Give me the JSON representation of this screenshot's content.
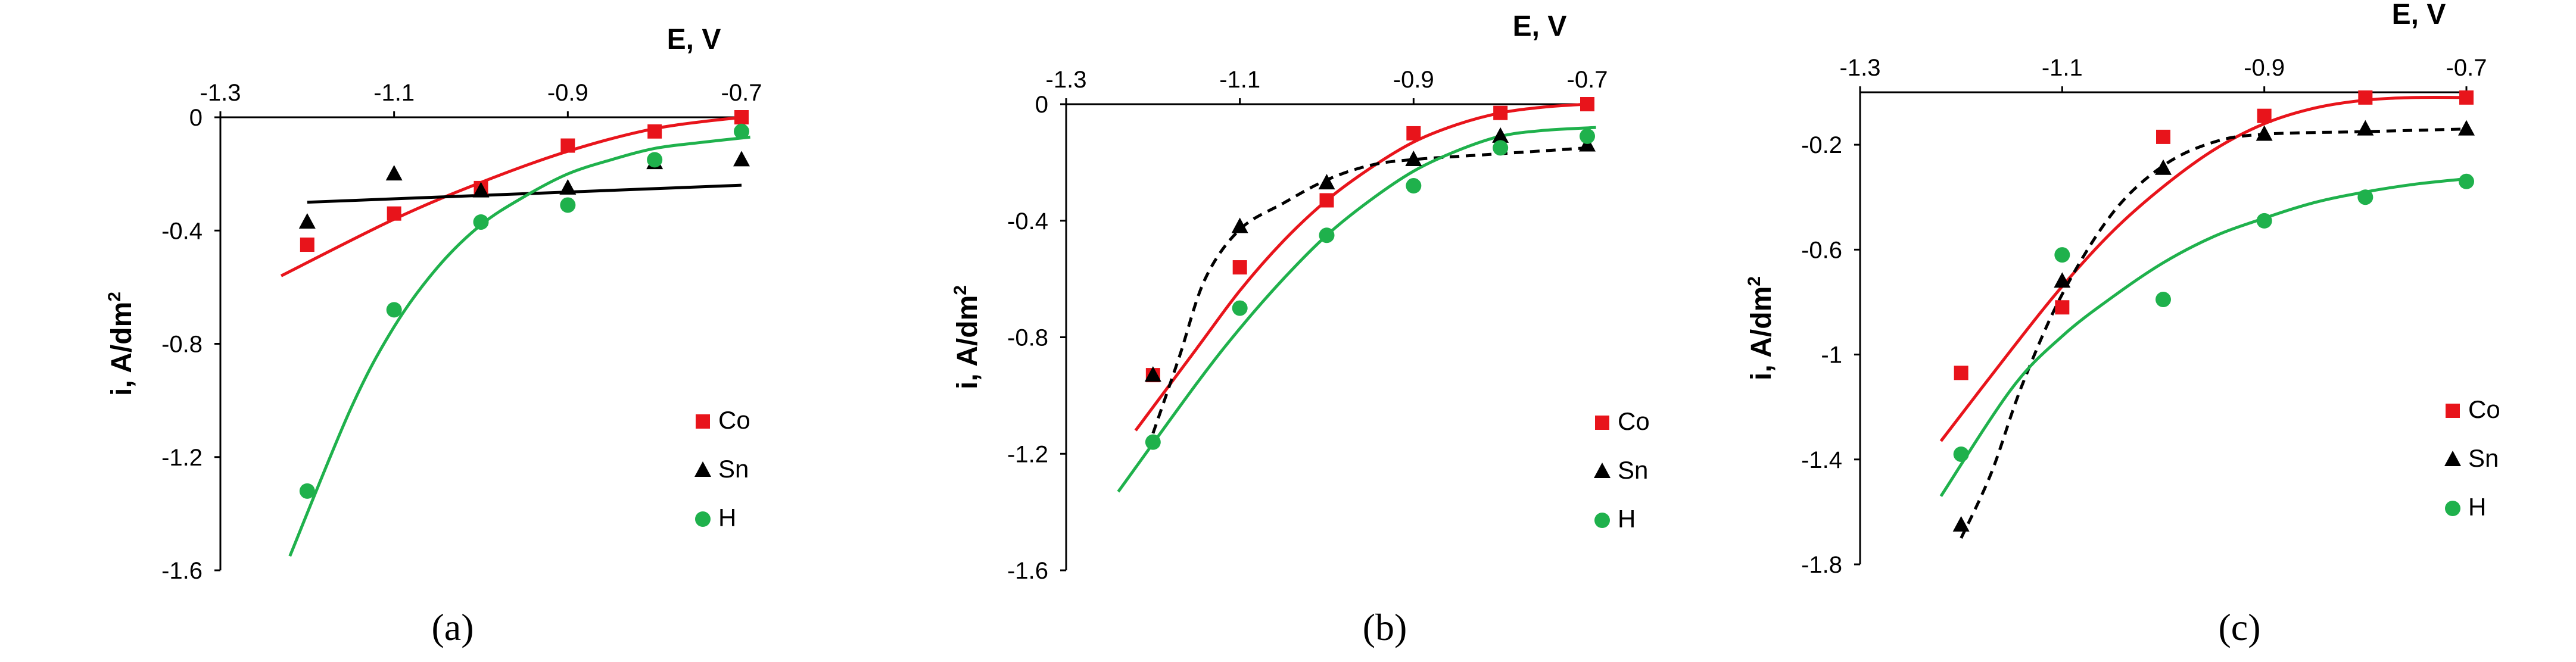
{
  "chart_data": [
    {
      "type": "scatter",
      "panel_label": "(a)",
      "xlabel": "E, V",
      "ylabel": "i, A/dm",
      "ylabel_sup": "2",
      "xlim": [
        -1.3,
        -0.7
      ],
      "ylim": [
        -1.6,
        0
      ],
      "xticks": [
        -1.3,
        -1.1,
        -0.9,
        -0.7
      ],
      "xtick_labels": [
        "-1.3",
        "-1.1",
        "-0.9",
        "-0.7"
      ],
      "yticks": [
        0,
        -0.4,
        -0.8,
        -1.2,
        -1.6
      ],
      "ytick_labels": [
        "0",
        "-0.4",
        "-0.8",
        "-1.2",
        "-1.6"
      ],
      "legend": [
        "Co",
        "Sn",
        "H"
      ],
      "series": [
        {
          "name": "Co",
          "marker": "square",
          "color": "#e8141b",
          "points": [
            [
              -1.2,
              -0.45
            ],
            [
              -1.1,
              -0.34
            ],
            [
              -1.0,
              -0.25
            ],
            [
              -0.9,
              -0.1
            ],
            [
              -0.8,
              -0.05
            ],
            [
              -0.7,
              0.0
            ]
          ],
          "trend": [
            [
              -1.23,
              -0.56
            ],
            [
              -1.1,
              -0.36
            ],
            [
              -1.0,
              -0.23
            ],
            [
              -0.9,
              -0.12
            ],
            [
              -0.8,
              -0.04
            ],
            [
              -0.7,
              0.0
            ]
          ],
          "trend_style": "solid"
        },
        {
          "name": "Sn",
          "marker": "triangle",
          "color": "#000000",
          "points": [
            [
              -1.2,
              -0.37
            ],
            [
              -1.1,
              -0.2
            ],
            [
              -1.0,
              -0.26
            ],
            [
              -0.9,
              -0.25
            ],
            [
              -0.8,
              -0.16
            ],
            [
              -0.7,
              -0.15
            ]
          ],
          "trend": [
            [
              -1.2,
              -0.3
            ],
            [
              -0.7,
              -0.24
            ]
          ],
          "trend_style": "solid"
        },
        {
          "name": "H",
          "marker": "circle",
          "color": "#1fb14c",
          "points": [
            [
              -1.2,
              -1.32
            ],
            [
              -1.1,
              -0.68
            ],
            [
              -1.0,
              -0.37
            ],
            [
              -0.9,
              -0.31
            ],
            [
              -0.8,
              -0.15
            ],
            [
              -0.7,
              -0.05
            ]
          ],
          "trend": [
            [
              -1.22,
              -1.55
            ],
            [
              -1.15,
              -1.03
            ],
            [
              -1.1,
              -0.74
            ],
            [
              -1.05,
              -0.53
            ],
            [
              -1.0,
              -0.38
            ],
            [
              -0.95,
              -0.28
            ],
            [
              -0.9,
              -0.2
            ],
            [
              -0.85,
              -0.15
            ],
            [
              -0.8,
              -0.11
            ],
            [
              -0.75,
              -0.09
            ],
            [
              -0.69,
              -0.07
            ]
          ],
          "trend_style": "solid"
        }
      ]
    },
    {
      "type": "scatter",
      "panel_label": "(b)",
      "xlabel": "E, V",
      "ylabel": "i, A/dm",
      "ylabel_sup": "2",
      "xlim": [
        -1.3,
        -0.7
      ],
      "ylim": [
        -1.6,
        0
      ],
      "xticks": [
        -1.3,
        -1.1,
        -0.9,
        -0.7
      ],
      "xtick_labels": [
        "-1.3",
        "-1.1",
        "-0.9",
        "-0.7"
      ],
      "yticks": [
        0,
        -0.4,
        -0.8,
        -1.2,
        -1.6
      ],
      "ytick_labels": [
        "0",
        "-0.4",
        "-0.8",
        "-1.2",
        "-1.6"
      ],
      "legend": [
        "Co",
        "Sn",
        "H"
      ],
      "series": [
        {
          "name": "Co",
          "marker": "square",
          "color": "#e8141b",
          "points": [
            [
              -1.2,
              -0.93
            ],
            [
              -1.1,
              -0.56
            ],
            [
              -1.0,
              -0.33
            ],
            [
              -0.9,
              -0.1
            ],
            [
              -0.8,
              -0.03
            ],
            [
              -0.7,
              0.0
            ]
          ],
          "trend": [
            [
              -1.22,
              -1.12
            ],
            [
              -1.15,
              -0.84
            ],
            [
              -1.1,
              -0.64
            ],
            [
              -1.05,
              -0.47
            ],
            [
              -1.0,
              -0.33
            ],
            [
              -0.95,
              -0.22
            ],
            [
              -0.9,
              -0.13
            ],
            [
              -0.85,
              -0.07
            ],
            [
              -0.8,
              -0.03
            ],
            [
              -0.75,
              -0.01
            ],
            [
              -0.7,
              0.0
            ]
          ],
          "trend_style": "solid"
        },
        {
          "name": "Sn",
          "marker": "triangle",
          "color": "#000000",
          "points": [
            [
              -1.2,
              -0.93
            ],
            [
              -1.1,
              -0.42
            ],
            [
              -1.0,
              -0.27
            ],
            [
              -0.9,
              -0.19
            ],
            [
              -0.8,
              -0.11
            ],
            [
              -0.7,
              -0.14
            ]
          ],
          "trend": [
            [
              -1.2,
              -1.13
            ],
            [
              -1.17,
              -0.87
            ],
            [
              -1.14,
              -0.6
            ],
            [
              -1.1,
              -0.43
            ],
            [
              -1.05,
              -0.34
            ],
            [
              -1.0,
              -0.26
            ],
            [
              -0.95,
              -0.21
            ],
            [
              -0.9,
              -0.19
            ],
            [
              -0.8,
              -0.17
            ],
            [
              -0.7,
              -0.15
            ]
          ],
          "trend_style": "dashed"
        },
        {
          "name": "H",
          "marker": "circle",
          "color": "#1fb14c",
          "points": [
            [
              -1.2,
              -1.16
            ],
            [
              -1.1,
              -0.7
            ],
            [
              -1.0,
              -0.45
            ],
            [
              -0.9,
              -0.28
            ],
            [
              -0.8,
              -0.15
            ],
            [
              -0.7,
              -0.11
            ]
          ],
          "trend": [
            [
              -1.24,
              -1.33
            ],
            [
              -1.15,
              -0.96
            ],
            [
              -1.1,
              -0.77
            ],
            [
              -1.05,
              -0.6
            ],
            [
              -1.0,
              -0.45
            ],
            [
              -0.95,
              -0.33
            ],
            [
              -0.9,
              -0.23
            ],
            [
              -0.85,
              -0.16
            ],
            [
              -0.8,
              -0.11
            ],
            [
              -0.75,
              -0.09
            ],
            [
              -0.69,
              -0.08
            ]
          ],
          "trend_style": "solid"
        }
      ]
    },
    {
      "type": "scatter",
      "panel_label": "(c)",
      "xlabel": "E, V",
      "ylabel": "i, A/dm",
      "ylabel_sup": "2",
      "xlim": [
        -1.3,
        -0.7
      ],
      "ylim": [
        -1.8,
        0
      ],
      "xticks": [
        -1.3,
        -1.1,
        -0.9,
        -0.7
      ],
      "xtick_labels": [
        "-1.3",
        "-1.1",
        "-0.9",
        "-0.7"
      ],
      "yticks": [
        -0.2,
        -0.6,
        -1,
        -1.4,
        -1.8
      ],
      "ytick_labels": [
        "-0.2",
        "-0.6",
        "-1",
        "-1.4",
        "-1.8"
      ],
      "legend": [
        "Co",
        "Sn",
        "H"
      ],
      "series": [
        {
          "name": "Co",
          "marker": "square",
          "color": "#e8141b",
          "points": [
            [
              -1.2,
              -1.07
            ],
            [
              -1.1,
              -0.82
            ],
            [
              -1.0,
              -0.17
            ],
            [
              -0.9,
              -0.09
            ],
            [
              -0.8,
              -0.02
            ],
            [
              -0.7,
              -0.02
            ]
          ],
          "trend": [
            [
              -1.22,
              -1.33
            ],
            [
              -1.15,
              -0.98
            ],
            [
              -1.1,
              -0.74
            ],
            [
              -1.05,
              -0.53
            ],
            [
              -1.0,
              -0.36
            ],
            [
              -0.95,
              -0.22
            ],
            [
              -0.9,
              -0.12
            ],
            [
              -0.85,
              -0.06
            ],
            [
              -0.8,
              -0.03
            ],
            [
              -0.75,
              -0.02
            ],
            [
              -0.7,
              -0.02
            ]
          ],
          "trend_style": "solid"
        },
        {
          "name": "Sn",
          "marker": "triangle",
          "color": "#000000",
          "points": [
            [
              -1.2,
              -1.65
            ],
            [
              -1.1,
              -0.72
            ],
            [
              -1.0,
              -0.29
            ],
            [
              -0.9,
              -0.16
            ],
            [
              -0.8,
              -0.14
            ],
            [
              -0.7,
              -0.14
            ]
          ],
          "trend": [
            [
              -1.2,
              -1.7
            ],
            [
              -1.17,
              -1.45
            ],
            [
              -1.14,
              -1.12
            ],
            [
              -1.1,
              -0.77
            ],
            [
              -1.05,
              -0.46
            ],
            [
              -1.0,
              -0.28
            ],
            [
              -0.95,
              -0.19
            ],
            [
              -0.9,
              -0.16
            ],
            [
              -0.8,
              -0.15
            ],
            [
              -0.7,
              -0.14
            ]
          ],
          "trend_style": "dashed"
        },
        {
          "name": "H",
          "marker": "circle",
          "color": "#1fb14c",
          "points": [
            [
              -1.2,
              -1.38
            ],
            [
              -1.1,
              -0.62
            ],
            [
              -1.0,
              -0.79
            ],
            [
              -0.9,
              -0.49
            ],
            [
              -0.8,
              -0.4
            ],
            [
              -0.7,
              -0.34
            ]
          ],
          "trend": [
            [
              -1.22,
              -1.54
            ],
            [
              -1.15,
              -1.13
            ],
            [
              -1.1,
              -0.93
            ],
            [
              -1.05,
              -0.78
            ],
            [
              -1.0,
              -0.65
            ],
            [
              -0.95,
              -0.55
            ],
            [
              -0.9,
              -0.48
            ],
            [
              -0.85,
              -0.42
            ],
            [
              -0.8,
              -0.38
            ],
            [
              -0.75,
              -0.35
            ],
            [
              -0.7,
              -0.33
            ]
          ],
          "trend_style": "solid"
        }
      ]
    }
  ]
}
